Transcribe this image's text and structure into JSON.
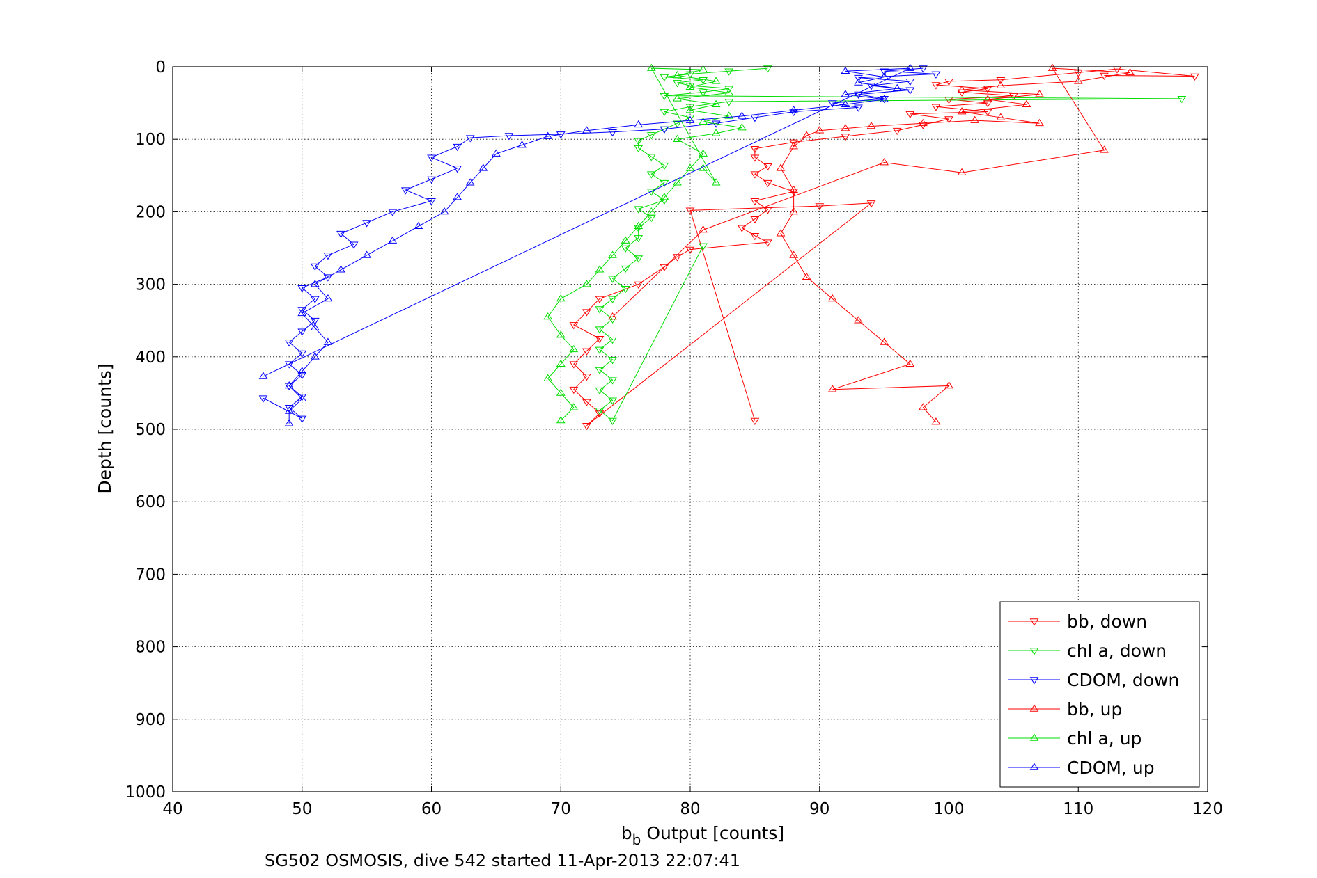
{
  "chart_data": {
    "type": "scatter",
    "title": "",
    "xlabel": "b_b Output [counts]",
    "xlabel_main": "b",
    "xlabel_sub": "b",
    "xlabel_rest": " Output [counts]",
    "ylabel": "Depth [counts]",
    "caption": "SG502 OSMOSIS, dive 542 started 11-Apr-2013 22:07:41",
    "xlim": [
      40,
      120
    ],
    "ylim": [
      0,
      1000
    ],
    "y_reversed": true,
    "x_ticks": [
      40,
      50,
      60,
      70,
      80,
      90,
      100,
      110,
      120
    ],
    "y_ticks": [
      0,
      100,
      200,
      300,
      400,
      500,
      600,
      700,
      800,
      900,
      1000
    ],
    "grid": true,
    "legend_position": "bottom-right",
    "series": [
      {
        "name": "bb, down",
        "color": "#ff0000",
        "marker": "triangle-down",
        "connected": true,
        "points": [
          [
            112,
            12
          ],
          [
            119,
            13
          ],
          [
            113,
            3
          ],
          [
            110,
            8
          ],
          [
            104,
            18
          ],
          [
            100,
            20
          ],
          [
            99,
            25
          ],
          [
            103,
            30
          ],
          [
            101,
            35
          ],
          [
            105,
            40
          ],
          [
            100,
            45
          ],
          [
            103,
            50
          ],
          [
            99,
            55
          ],
          [
            103,
            62
          ],
          [
            97,
            65
          ],
          [
            100,
            72
          ],
          [
            98,
            80
          ],
          [
            96,
            88
          ],
          [
            92,
            96
          ],
          [
            88,
            104
          ],
          [
            85,
            113
          ],
          [
            85,
            125
          ],
          [
            86,
            137
          ],
          [
            85,
            148
          ],
          [
            86,
            160
          ],
          [
            88,
            172
          ],
          [
            85,
            185
          ],
          [
            86,
            197
          ],
          [
            85,
            210
          ],
          [
            84,
            222
          ],
          [
            85,
            233
          ],
          [
            86,
            242
          ],
          [
            80,
            252
          ],
          [
            79,
            262
          ],
          [
            78,
            276
          ],
          [
            76,
            300
          ],
          [
            73,
            320
          ],
          [
            72,
            338
          ],
          [
            71,
            356
          ],
          [
            73,
            375
          ],
          [
            72,
            392
          ],
          [
            71,
            410
          ],
          [
            72,
            427
          ],
          [
            71,
            445
          ],
          [
            72,
            462
          ],
          [
            73,
            478
          ],
          [
            72,
            495
          ],
          [
            94,
            188
          ],
          [
            90,
            192
          ],
          [
            80,
            198
          ],
          [
            85,
            488
          ]
        ]
      },
      {
        "name": "chl a, down",
        "color": "#00dd00",
        "marker": "triangle-down",
        "connected": true,
        "points": [
          [
            86,
            2
          ],
          [
            83,
            6
          ],
          [
            80,
            10
          ],
          [
            78,
            14
          ],
          [
            81,
            18
          ],
          [
            79,
            22
          ],
          [
            80,
            26
          ],
          [
            83,
            30
          ],
          [
            81,
            35
          ],
          [
            78,
            40
          ],
          [
            118,
            44
          ],
          [
            83,
            48
          ],
          [
            80,
            55
          ],
          [
            78,
            62
          ],
          [
            80,
            70
          ],
          [
            79,
            78
          ],
          [
            78,
            86
          ],
          [
            77,
            94
          ],
          [
            76,
            102
          ],
          [
            76,
            112
          ],
          [
            77,
            124
          ],
          [
            78,
            136
          ],
          [
            77,
            148
          ],
          [
            78,
            160
          ],
          [
            77,
            172
          ],
          [
            78,
            184
          ],
          [
            76,
            196
          ],
          [
            77,
            208
          ],
          [
            76,
            222
          ],
          [
            76,
            236
          ],
          [
            75,
            250
          ],
          [
            76,
            264
          ],
          [
            75,
            278
          ],
          [
            74,
            292
          ],
          [
            75,
            306
          ],
          [
            74,
            320
          ],
          [
            73,
            334
          ],
          [
            74,
            348
          ],
          [
            73,
            362
          ],
          [
            74,
            376
          ],
          [
            73,
            390
          ],
          [
            74,
            404
          ],
          [
            73,
            418
          ],
          [
            74,
            432
          ],
          [
            73,
            446
          ],
          [
            74,
            460
          ],
          [
            73,
            474
          ],
          [
            74,
            488
          ],
          [
            81,
            247
          ]
        ]
      },
      {
        "name": "CDOM, down",
        "color": "#0000ff",
        "marker": "triangle-down",
        "connected": true,
        "points": [
          [
            98,
            2
          ],
          [
            95,
            6
          ],
          [
            99,
            10
          ],
          [
            93,
            15
          ],
          [
            97,
            20
          ],
          [
            94,
            26
          ],
          [
            97,
            32
          ],
          [
            93,
            38
          ],
          [
            95,
            44
          ],
          [
            91,
            50
          ],
          [
            93,
            56
          ],
          [
            88,
            62
          ],
          [
            85,
            70
          ],
          [
            82,
            78
          ],
          [
            78,
            86
          ],
          [
            74,
            90
          ],
          [
            70,
            93
          ],
          [
            66,
            95
          ],
          [
            63,
            98
          ],
          [
            62,
            110
          ],
          [
            60,
            125
          ],
          [
            62,
            140
          ],
          [
            60,
            155
          ],
          [
            58,
            170
          ],
          [
            60,
            185
          ],
          [
            57,
            200
          ],
          [
            55,
            215
          ],
          [
            53,
            230
          ],
          [
            54,
            245
          ],
          [
            52,
            260
          ],
          [
            51,
            275
          ],
          [
            52,
            290
          ],
          [
            50,
            305
          ],
          [
            51,
            320
          ],
          [
            50,
            335
          ],
          [
            51,
            350
          ],
          [
            50,
            365
          ],
          [
            49,
            380
          ],
          [
            50,
            395
          ],
          [
            49,
            410
          ],
          [
            50,
            425
          ],
          [
            49,
            440
          ],
          [
            50,
            455
          ],
          [
            49,
            470
          ],
          [
            50,
            485
          ],
          [
            47,
            457
          ]
        ]
      },
      {
        "name": "bb, up",
        "color": "#ff0000",
        "marker": "triangle-up",
        "connected": true,
        "points": [
          [
            99,
            490
          ],
          [
            98,
            470
          ],
          [
            100,
            440
          ],
          [
            91,
            445
          ],
          [
            97,
            410
          ],
          [
            95,
            380
          ],
          [
            93,
            350
          ],
          [
            91,
            320
          ],
          [
            89,
            290
          ],
          [
            88,
            260
          ],
          [
            87,
            230
          ],
          [
            88,
            200
          ],
          [
            88,
            170
          ],
          [
            87,
            140
          ],
          [
            88,
            110
          ],
          [
            89,
            95
          ],
          [
            90,
            88
          ],
          [
            92,
            85
          ],
          [
            94,
            82
          ],
          [
            98,
            78
          ],
          [
            102,
            74
          ],
          [
            107,
            78
          ],
          [
            104,
            70
          ],
          [
            101,
            62
          ],
          [
            106,
            52
          ],
          [
            103,
            45
          ],
          [
            107,
            38
          ],
          [
            101,
            32
          ],
          [
            104,
            26
          ],
          [
            110,
            20
          ],
          [
            114,
            8
          ],
          [
            108,
            2
          ],
          [
            112,
            115
          ],
          [
            101,
            146
          ],
          [
            95,
            132
          ],
          [
            81,
            225
          ],
          [
            74,
            345
          ]
        ]
      },
      {
        "name": "chl a, up",
        "color": "#00dd00",
        "marker": "triangle-up",
        "connected": true,
        "points": [
          [
            70,
            488
          ],
          [
            71,
            470
          ],
          [
            70,
            450
          ],
          [
            69,
            430
          ],
          [
            70,
            410
          ],
          [
            71,
            390
          ],
          [
            70,
            370
          ],
          [
            69,
            345
          ],
          [
            70,
            320
          ],
          [
            72,
            300
          ],
          [
            73,
            280
          ],
          [
            74,
            260
          ],
          [
            75,
            240
          ],
          [
            76,
            220
          ],
          [
            77,
            200
          ],
          [
            78,
            180
          ],
          [
            79,
            160
          ],
          [
            80,
            140
          ],
          [
            81,
            120
          ],
          [
            79,
            100
          ],
          [
            82,
            92
          ],
          [
            84,
            84
          ],
          [
            81,
            76
          ],
          [
            83,
            68
          ],
          [
            80,
            60
          ],
          [
            82,
            52
          ],
          [
            79,
            44
          ],
          [
            83,
            36
          ],
          [
            80,
            28
          ],
          [
            82,
            20
          ],
          [
            79,
            12
          ],
          [
            81,
            4
          ],
          [
            77,
            2
          ],
          [
            82,
            160
          ],
          [
            81,
            140
          ]
        ]
      },
      {
        "name": "CDOM, up",
        "color": "#0000ff",
        "marker": "triangle-up",
        "connected": true,
        "points": [
          [
            49,
            492
          ],
          [
            49,
            475
          ],
          [
            50,
            458
          ],
          [
            49,
            440
          ],
          [
            50,
            420
          ],
          [
            51,
            400
          ],
          [
            52,
            380
          ],
          [
            51,
            360
          ],
          [
            50,
            340
          ],
          [
            52,
            320
          ],
          [
            51,
            300
          ],
          [
            53,
            280
          ],
          [
            55,
            260
          ],
          [
            57,
            240
          ],
          [
            59,
            220
          ],
          [
            61,
            200
          ],
          [
            62,
            180
          ],
          [
            63,
            160
          ],
          [
            64,
            140
          ],
          [
            65,
            120
          ],
          [
            67,
            108
          ],
          [
            69,
            96
          ],
          [
            72,
            88
          ],
          [
            76,
            80
          ],
          [
            80,
            74
          ],
          [
            84,
            68
          ],
          [
            88,
            60
          ],
          [
            92,
            52
          ],
          [
            95,
            45
          ],
          [
            92,
            38
          ],
          [
            96,
            30
          ],
          [
            93,
            22
          ],
          [
            95,
            14
          ],
          [
            92,
            6
          ],
          [
            97,
            2
          ],
          [
            47,
            427
          ]
        ]
      }
    ]
  }
}
